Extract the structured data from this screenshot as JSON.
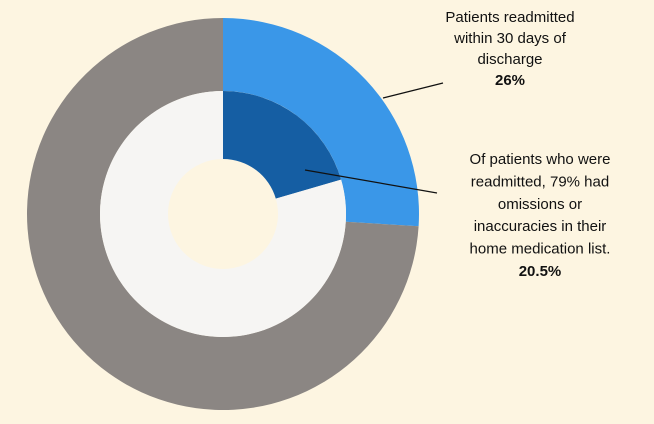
{
  "chart_data": {
    "type": "donut",
    "rings": [
      {
        "values": [
          26,
          74
        ],
        "colors": [
          "#3a97e8",
          "#8b8683"
        ],
        "value_labels": [
          "26%",
          null
        ]
      },
      {
        "values": [
          20.5,
          79.5
        ],
        "colors": [
          "#155ea3",
          "#f6f5f3"
        ],
        "value_labels": [
          "20.5%",
          null
        ]
      }
    ],
    "annotations": [
      [
        "Patients readmitted",
        "within 30 days of",
        "discharge"
      ],
      [
        "Of patients who were",
        "readmitted, 79% had",
        "omissions or",
        "inaccuracies in their",
        "home medication list."
      ]
    ]
  }
}
